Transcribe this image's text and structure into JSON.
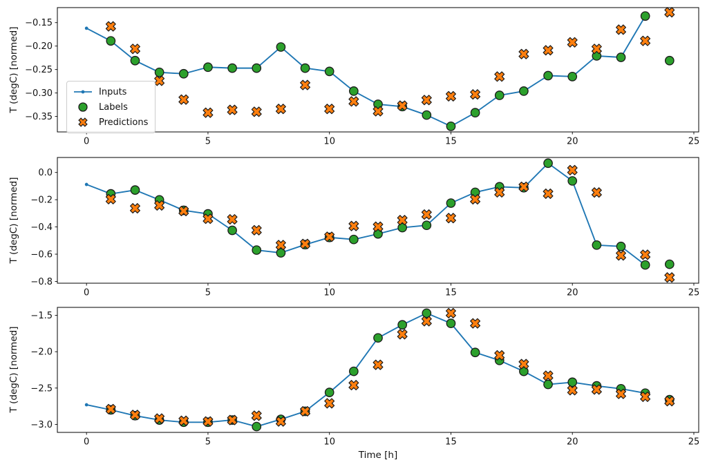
{
  "figure": {
    "background": "#ffffff",
    "xlabel": "Time [h]",
    "colors": {
      "inputs": "#1f77b4",
      "labels": "#2ca02c",
      "predictions": "#ff7f0e",
      "marker_edge": "#1a1a1a",
      "spine": "#000000",
      "text": "#111111",
      "legend_border": "#cccccc"
    }
  },
  "legend": {
    "entries": [
      {
        "label": "Inputs",
        "marker": "line-with-dot"
      },
      {
        "label": "Labels",
        "marker": "green-circle"
      },
      {
        "label": "Predictions",
        "marker": "orange-x"
      }
    ]
  },
  "chart_data": [
    {
      "type": "line",
      "title": "",
      "xlabel": "",
      "ylabel": "T (degC) [normed]",
      "xlim": [
        -1.2,
        25.2
      ],
      "ylim": [
        -0.383,
        -0.118
      ],
      "xticks": [
        0,
        5,
        10,
        15,
        20,
        25
      ],
      "xtick_labels": [
        "0",
        "5",
        "10",
        "15",
        "20",
        "25"
      ],
      "yticks": [
        -0.15,
        -0.2,
        -0.25,
        -0.3,
        -0.35
      ],
      "ytick_labels": [
        "−0.15",
        "−0.20",
        "−0.25",
        "−0.30",
        "−0.35"
      ],
      "grid": false,
      "series": [
        {
          "name": "Inputs",
          "kind": "line",
          "marker": "dot",
          "color": "#1f77b4",
          "x": [
            0,
            1,
            2,
            3,
            4,
            5,
            6,
            7,
            8,
            9,
            10,
            11,
            12,
            13,
            14,
            15,
            16,
            17,
            18,
            19,
            20,
            21,
            22,
            23
          ],
          "y": [
            -0.162,
            -0.189,
            -0.231,
            -0.256,
            -0.259,
            -0.245,
            -0.247,
            -0.247,
            -0.202,
            -0.247,
            -0.254,
            -0.296,
            -0.324,
            -0.329,
            -0.347,
            -0.371,
            -0.342,
            -0.305,
            -0.296,
            -0.263,
            -0.265,
            -0.221,
            -0.224,
            -0.136
          ]
        },
        {
          "name": "Labels",
          "kind": "scatter",
          "marker": "circle",
          "color": "#2ca02c",
          "x": [
            1,
            2,
            3,
            4,
            5,
            6,
            7,
            8,
            9,
            10,
            11,
            12,
            13,
            14,
            15,
            16,
            17,
            18,
            19,
            20,
            21,
            22,
            23,
            24
          ],
          "y": [
            -0.189,
            -0.231,
            -0.256,
            -0.259,
            -0.245,
            -0.247,
            -0.247,
            -0.202,
            -0.247,
            -0.254,
            -0.296,
            -0.324,
            -0.329,
            -0.347,
            -0.371,
            -0.342,
            -0.305,
            -0.296,
            -0.263,
            -0.265,
            -0.221,
            -0.224,
            -0.136,
            -0.231
          ]
        },
        {
          "name": "Predictions",
          "kind": "scatter",
          "marker": "X",
          "color": "#ff7f0e",
          "x": [
            1,
            2,
            3,
            4,
            5,
            6,
            7,
            8,
            9,
            10,
            11,
            12,
            13,
            14,
            15,
            16,
            17,
            18,
            19,
            20,
            21,
            22,
            23,
            24
          ],
          "y": [
            -0.158,
            -0.206,
            -0.274,
            -0.314,
            -0.342,
            -0.336,
            -0.34,
            -0.334,
            -0.283,
            -0.334,
            -0.318,
            -0.339,
            -0.327,
            -0.315,
            -0.307,
            -0.303,
            -0.265,
            -0.217,
            -0.209,
            -0.192,
            -0.206,
            -0.165,
            -0.189,
            -0.128
          ]
        }
      ]
    },
    {
      "type": "line",
      "title": "",
      "xlabel": "",
      "ylabel": "T (degC) [normed]",
      "xlim": [
        -1.2,
        25.2
      ],
      "ylim": [
        -0.813,
        0.11
      ],
      "xticks": [
        0,
        5,
        10,
        15,
        20,
        25
      ],
      "xtick_labels": [
        "0",
        "5",
        "10",
        "15",
        "20",
        "25"
      ],
      "yticks": [
        0.0,
        -0.2,
        -0.4,
        -0.6,
        -0.8
      ],
      "ytick_labels": [
        "0.0",
        "−0.2",
        "−0.4",
        "−0.6",
        "−0.8"
      ],
      "grid": false,
      "series": [
        {
          "name": "Inputs",
          "kind": "line",
          "marker": "dot",
          "color": "#1f77b4",
          "x": [
            0,
            1,
            2,
            3,
            4,
            5,
            6,
            7,
            8,
            9,
            10,
            11,
            12,
            13,
            14,
            15,
            16,
            17,
            18,
            19,
            20,
            21,
            22,
            23
          ],
          "y": [
            -0.088,
            -0.157,
            -0.129,
            -0.201,
            -0.278,
            -0.304,
            -0.425,
            -0.57,
            -0.59,
            -0.53,
            -0.477,
            -0.492,
            -0.451,
            -0.405,
            -0.388,
            -0.225,
            -0.146,
            -0.105,
            -0.112,
            0.068,
            -0.062,
            -0.533,
            -0.543,
            -0.679
          ]
        },
        {
          "name": "Labels",
          "kind": "scatter",
          "marker": "circle",
          "color": "#2ca02c",
          "x": [
            1,
            2,
            3,
            4,
            5,
            6,
            7,
            8,
            9,
            10,
            11,
            12,
            13,
            14,
            15,
            16,
            17,
            18,
            19,
            20,
            21,
            22,
            23,
            24
          ],
          "y": [
            -0.157,
            -0.129,
            -0.201,
            -0.278,
            -0.304,
            -0.425,
            -0.57,
            -0.59,
            -0.53,
            -0.477,
            -0.492,
            -0.451,
            -0.405,
            -0.388,
            -0.225,
            -0.146,
            -0.105,
            -0.112,
            0.068,
            -0.062,
            -0.533,
            -0.543,
            -0.679,
            -0.674
          ]
        },
        {
          "name": "Predictions",
          "kind": "scatter",
          "marker": "X",
          "color": "#ff7f0e",
          "x": [
            1,
            2,
            3,
            4,
            5,
            6,
            7,
            8,
            9,
            10,
            11,
            12,
            13,
            14,
            15,
            16,
            17,
            18,
            19,
            20,
            21,
            22,
            23,
            24
          ],
          "y": [
            -0.196,
            -0.263,
            -0.242,
            -0.283,
            -0.34,
            -0.344,
            -0.424,
            -0.533,
            -0.525,
            -0.472,
            -0.393,
            -0.398,
            -0.35,
            -0.309,
            -0.335,
            -0.197,
            -0.146,
            -0.105,
            -0.156,
            0.017,
            -0.147,
            -0.609,
            -0.604,
            -0.771
          ]
        }
      ]
    },
    {
      "type": "line",
      "title": "",
      "xlabel": "Time [h]",
      "ylabel": "T (degC) [normed]",
      "xlim": [
        -1.2,
        25.2
      ],
      "ylim": [
        -3.11,
        -1.39
      ],
      "xticks": [
        0,
        5,
        10,
        15,
        20,
        25
      ],
      "xtick_labels": [
        "0",
        "5",
        "10",
        "15",
        "20",
        "25"
      ],
      "yticks": [
        -1.5,
        -2.0,
        -2.5,
        -3.0
      ],
      "ytick_labels": [
        "−1.5",
        "−2.0",
        "−2.5",
        "−3.0"
      ],
      "grid": false,
      "series": [
        {
          "name": "Inputs",
          "kind": "line",
          "marker": "dot",
          "color": "#1f77b4",
          "x": [
            0,
            1,
            2,
            3,
            4,
            5,
            6,
            7,
            8,
            9,
            10,
            11,
            12,
            13,
            14,
            15,
            16,
            17,
            18,
            19,
            20,
            21,
            22,
            23
          ],
          "y": [
            -2.73,
            -2.8,
            -2.88,
            -2.94,
            -2.97,
            -2.97,
            -2.94,
            -3.03,
            -2.93,
            -2.82,
            -2.56,
            -2.27,
            -1.81,
            -1.63,
            -1.47,
            -1.61,
            -2.01,
            -2.12,
            -2.27,
            -2.45,
            -2.42,
            -2.47,
            -2.51,
            -2.57
          ]
        },
        {
          "name": "Labels",
          "kind": "scatter",
          "marker": "circle",
          "color": "#2ca02c",
          "x": [
            1,
            2,
            3,
            4,
            5,
            6,
            7,
            8,
            9,
            10,
            11,
            12,
            13,
            14,
            15,
            16,
            17,
            18,
            19,
            20,
            21,
            22,
            23,
            24
          ],
          "y": [
            -2.8,
            -2.88,
            -2.94,
            -2.97,
            -2.97,
            -2.94,
            -3.03,
            -2.93,
            -2.82,
            -2.56,
            -2.27,
            -1.81,
            -1.63,
            -1.47,
            -1.61,
            -2.01,
            -2.12,
            -2.27,
            -2.45,
            -2.42,
            -2.47,
            -2.51,
            -2.57,
            -2.66
          ]
        },
        {
          "name": "Predictions",
          "kind": "scatter",
          "marker": "X",
          "color": "#ff7f0e",
          "x": [
            1,
            2,
            3,
            4,
            5,
            6,
            7,
            8,
            9,
            10,
            11,
            12,
            13,
            14,
            15,
            16,
            17,
            18,
            19,
            20,
            21,
            22,
            23,
            24
          ],
          "y": [
            -2.79,
            -2.87,
            -2.92,
            -2.95,
            -2.96,
            -2.94,
            -2.88,
            -2.96,
            -2.82,
            -2.71,
            -2.46,
            -2.18,
            -1.76,
            -1.58,
            -1.47,
            -1.61,
            -2.05,
            -2.17,
            -2.33,
            -2.53,
            -2.52,
            -2.58,
            -2.62,
            -2.68
          ]
        }
      ]
    }
  ]
}
